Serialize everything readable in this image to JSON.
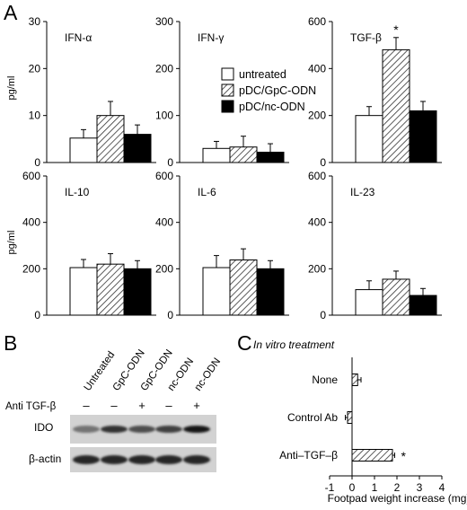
{
  "panel_labels": {
    "a": "A",
    "b": "B",
    "c": "C"
  },
  "panel_a": {
    "ylabel": "pg/ml",
    "legend": [
      {
        "label": "untreated",
        "fill": "white"
      },
      {
        "label": "pDC/GpC-ODN",
        "fill": "hatch"
      },
      {
        "label": "pDC/nc-ODN",
        "fill": "black"
      }
    ],
    "charts": [
      {
        "name": "IFN-α",
        "title": "IFN-α",
        "ylim": [
          0,
          30
        ],
        "ticks": [
          0,
          10,
          20,
          30
        ],
        "values": [
          5.2,
          10,
          6
        ],
        "errors": [
          1.8,
          3,
          2
        ],
        "sig": []
      },
      {
        "name": "IFN-γ",
        "title": "IFN-γ",
        "ylim": [
          0,
          300
        ],
        "ticks": [
          0,
          100,
          200,
          300
        ],
        "values": [
          30,
          33,
          22
        ],
        "errors": [
          15,
          23,
          18
        ],
        "sig": []
      },
      {
        "name": "TGF-β",
        "title": "TGF-β",
        "ylim": [
          0,
          600
        ],
        "ticks": [
          0,
          200,
          400,
          600
        ],
        "values": [
          200,
          480,
          220
        ],
        "errors": [
          38,
          52,
          40
        ],
        "sig": [
          1
        ]
      },
      {
        "name": "IL-10",
        "title": "IL-10",
        "ylim": [
          0,
          600
        ],
        "ticks": [
          0,
          200,
          400,
          600
        ],
        "values": [
          205,
          220,
          200
        ],
        "errors": [
          35,
          45,
          35
        ],
        "sig": []
      },
      {
        "name": "IL-6",
        "title": "IL-6",
        "ylim": [
          0,
          600
        ],
        "ticks": [
          0,
          200,
          400,
          600
        ],
        "values": [
          205,
          238,
          200
        ],
        "errors": [
          52,
          48,
          35
        ],
        "sig": []
      },
      {
        "name": "IL-23",
        "title": "IL-23",
        "ylim": [
          0,
          600
        ],
        "ticks": [
          0,
          200,
          400,
          600
        ],
        "values": [
          110,
          155,
          85
        ],
        "errors": [
          38,
          35,
          30
        ],
        "sig": []
      }
    ],
    "sig_symbol": "*"
  },
  "panel_b": {
    "lanes": [
      "Untreated",
      "GpC-ODN",
      "GpC-ODN",
      "nc-ODN",
      "nc-ODN"
    ],
    "anti_label": "Anti TGF-β",
    "anti_marks": [
      "–",
      "–",
      "+",
      "–",
      "+"
    ],
    "rows": [
      {
        "label": "IDO",
        "band_intensity": [
          0.55,
          0.8,
          0.7,
          0.75,
          0.9
        ]
      },
      {
        "label": "β-actin",
        "band_intensity": [
          0.85,
          0.85,
          0.85,
          0.85,
          0.85
        ]
      }
    ]
  },
  "chart_data": [
    {
      "type": "bar",
      "title": "IFN-α",
      "ylabel": "pg/ml",
      "ylim": [
        0,
        30
      ],
      "series": [
        {
          "name": "untreated",
          "values": [
            5.2
          ],
          "errors": [
            1.8
          ]
        },
        {
          "name": "pDC/GpC-ODN",
          "values": [
            10
          ],
          "errors": [
            3
          ]
        },
        {
          "name": "pDC/nc-ODN",
          "values": [
            6
          ],
          "errors": [
            2
          ]
        }
      ]
    },
    {
      "type": "bar",
      "title": "IFN-γ",
      "ylim": [
        0,
        300
      ],
      "series": [
        {
          "name": "untreated",
          "values": [
            30
          ],
          "errors": [
            15
          ]
        },
        {
          "name": "pDC/GpC-ODN",
          "values": [
            33
          ],
          "errors": [
            23
          ]
        },
        {
          "name": "pDC/nc-ODN",
          "values": [
            22
          ],
          "errors": [
            18
          ]
        }
      ]
    },
    {
      "type": "bar",
      "title": "TGF-β",
      "ylim": [
        0,
        600
      ],
      "series": [
        {
          "name": "untreated",
          "values": [
            200
          ],
          "errors": [
            38
          ]
        },
        {
          "name": "pDC/GpC-ODN",
          "values": [
            480
          ],
          "errors": [
            52
          ]
        },
        {
          "name": "pDC/nc-ODN",
          "values": [
            220
          ],
          "errors": [
            40
          ]
        }
      ],
      "annotations": [
        "*"
      ]
    },
    {
      "type": "bar",
      "title": "IL-10",
      "ylabel": "pg/ml",
      "ylim": [
        0,
        600
      ],
      "series": [
        {
          "name": "untreated",
          "values": [
            205
          ],
          "errors": [
            35
          ]
        },
        {
          "name": "pDC/GpC-ODN",
          "values": [
            220
          ],
          "errors": [
            45
          ]
        },
        {
          "name": "pDC/nc-ODN",
          "values": [
            200
          ],
          "errors": [
            35
          ]
        }
      ]
    },
    {
      "type": "bar",
      "title": "IL-6",
      "ylim": [
        0,
        600
      ],
      "series": [
        {
          "name": "untreated",
          "values": [
            205
          ],
          "errors": [
            52
          ]
        },
        {
          "name": "pDC/GpC-ODN",
          "values": [
            238
          ],
          "errors": [
            48
          ]
        },
        {
          "name": "pDC/nc-ODN",
          "values": [
            200
          ],
          "errors": [
            35
          ]
        }
      ]
    },
    {
      "type": "bar",
      "title": "IL-23",
      "ylim": [
        0,
        600
      ],
      "series": [
        {
          "name": "untreated",
          "values": [
            110
          ],
          "errors": [
            38
          ]
        },
        {
          "name": "pDC/GpC-ODN",
          "values": [
            155
          ],
          "errors": [
            35
          ]
        },
        {
          "name": "pDC/nc-ODN",
          "values": [
            85
          ],
          "errors": [
            30
          ]
        }
      ]
    },
    {
      "type": "bar",
      "orientation": "horizontal",
      "title": "In vitro treatment",
      "xlabel": "Footpad weight increase (mg)",
      "xlim": [
        -1,
        4
      ],
      "xticks": [
        -1,
        0,
        1,
        2,
        3,
        4
      ],
      "categories": [
        "None",
        "Control Ab",
        "Anti–TGF–β"
      ],
      "values": [
        0.25,
        -0.2,
        1.8
      ],
      "errors": [
        0.15,
        0.1,
        0.1
      ],
      "annotations": [
        "",
        "",
        "*"
      ]
    }
  ]
}
